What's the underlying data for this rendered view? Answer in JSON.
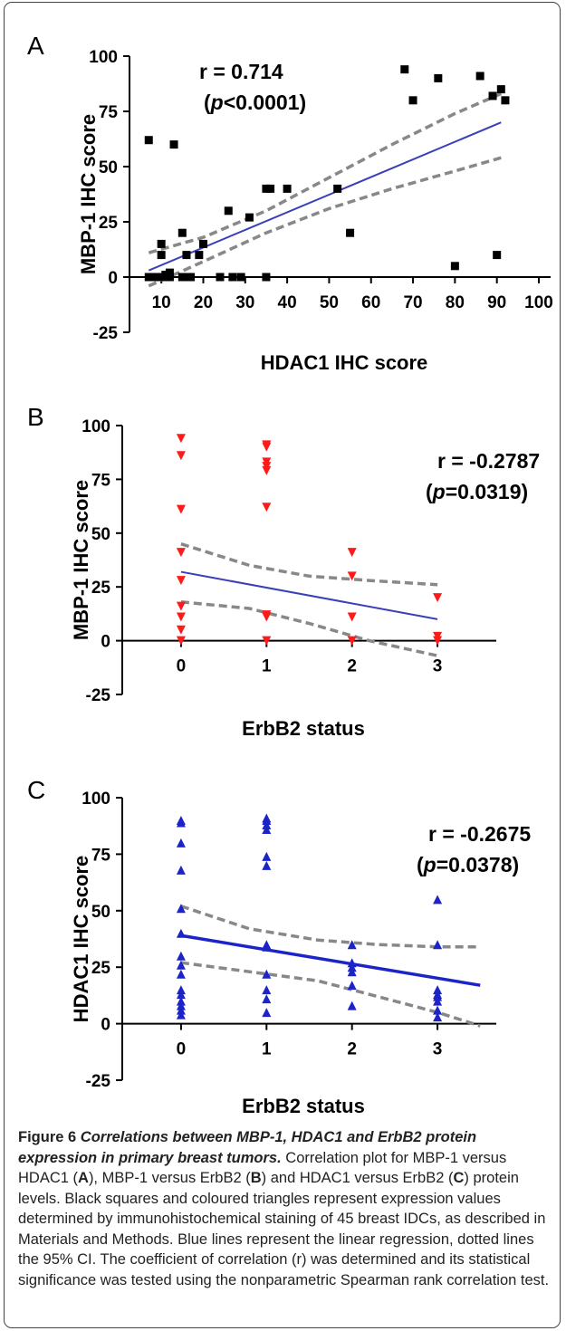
{
  "chart_data": [
    {
      "panel": "A",
      "type": "scatter",
      "marker": "square",
      "marker_color": "#000000",
      "xlabel": "HDAC1 IHC score",
      "ylabel": "MBP-1 IHC score",
      "xticks": [
        "10",
        "20",
        "30",
        "40",
        "50",
        "60",
        "70",
        "80",
        "90",
        "100"
      ],
      "yticks": [
        "100",
        "75",
        "50",
        "25",
        "0",
        "-25"
      ],
      "xlim": [
        5,
        100
      ],
      "ylim": [
        -25,
        100
      ],
      "annotation_r": "r = 0.714",
      "annotation_p_sym": "p",
      "annotation_p_val": "<0.0001",
      "regression": {
        "x0": 7,
        "y0": 3,
        "x1": 91,
        "y1": 70,
        "color": "#3b3fb8"
      },
      "ci_upper": [
        [
          7,
          11
        ],
        [
          20,
          18
        ],
        [
          35,
          30
        ],
        [
          50,
          45
        ],
        [
          65,
          60
        ],
        [
          80,
          74
        ],
        [
          91,
          83
        ]
      ],
      "ci_lower": [
        [
          7,
          -4
        ],
        [
          20,
          7
        ],
        [
          35,
          20
        ],
        [
          50,
          31
        ],
        [
          65,
          40
        ],
        [
          80,
          48
        ],
        [
          91,
          54
        ]
      ],
      "points": [
        [
          7,
          62
        ],
        [
          13,
          60
        ],
        [
          7,
          0
        ],
        [
          8,
          0
        ],
        [
          9,
          0
        ],
        [
          10,
          0
        ],
        [
          11,
          0
        ],
        [
          12,
          0
        ],
        [
          11,
          1
        ],
        [
          12,
          2
        ],
        [
          10,
          10
        ],
        [
          10,
          15
        ],
        [
          15,
          0
        ],
        [
          16,
          0
        ],
        [
          17,
          0
        ],
        [
          16,
          10
        ],
        [
          15,
          20
        ],
        [
          19,
          10
        ],
        [
          20,
          15
        ],
        [
          24,
          0
        ],
        [
          27,
          0
        ],
        [
          26,
          30
        ],
        [
          31,
          27
        ],
        [
          29,
          0
        ],
        [
          35,
          0
        ],
        [
          35,
          40
        ],
        [
          36,
          40
        ],
        [
          40,
          40
        ],
        [
          52,
          40
        ],
        [
          55,
          20
        ],
        [
          68,
          94
        ],
        [
          70,
          80
        ],
        [
          76,
          90
        ],
        [
          80,
          5
        ],
        [
          86,
          91
        ],
        [
          89,
          82
        ],
        [
          91,
          85
        ],
        [
          92,
          80
        ],
        [
          90,
          10
        ]
      ]
    },
    {
      "panel": "B",
      "type": "scatter",
      "marker": "triangle-down",
      "marker_color": "#ff1a1a",
      "xlabel": "ErbB2 status",
      "ylabel": "MBP-1 IHC score",
      "xticks": [
        "0",
        "1",
        "2",
        "3"
      ],
      "yticks": [
        "100",
        "75",
        "50",
        "25",
        "0",
        "-25"
      ],
      "xlim": [
        -0.55,
        3.55
      ],
      "ylim": [
        -25,
        100
      ],
      "annotation_r": "r = -0.2787",
      "annotation_p_sym": "p",
      "annotation_p_val": "=0.0319",
      "regression": {
        "x0": 0,
        "y0": 32,
        "x1": 3,
        "y1": 10,
        "color": "#3b3fb8"
      },
      "ci_upper": [
        [
          0,
          45
        ],
        [
          0.8,
          35
        ],
        [
          1.5,
          30
        ],
        [
          2.2,
          28
        ],
        [
          3,
          26
        ]
      ],
      "ci_lower": [
        [
          0,
          18
        ],
        [
          0.8,
          15
        ],
        [
          1.5,
          8
        ],
        [
          2.2,
          0
        ],
        [
          3,
          -7
        ]
      ],
      "points": [
        [
          0,
          94
        ],
        [
          0,
          86
        ],
        [
          0,
          61
        ],
        [
          0,
          41
        ],
        [
          0,
          28
        ],
        [
          0,
          16
        ],
        [
          0,
          11
        ],
        [
          0,
          5
        ],
        [
          0,
          0
        ],
        [
          1,
          91
        ],
        [
          1,
          90
        ],
        [
          1,
          83
        ],
        [
          1,
          81
        ],
        [
          1,
          79
        ],
        [
          1,
          62
        ],
        [
          1,
          12
        ],
        [
          1,
          11
        ],
        [
          1,
          0
        ],
        [
          2,
          41
        ],
        [
          2,
          30
        ],
        [
          2,
          11
        ],
        [
          2,
          0
        ],
        [
          3,
          20
        ],
        [
          3,
          2
        ],
        [
          3,
          0
        ]
      ]
    },
    {
      "panel": "C",
      "type": "scatter",
      "marker": "triangle-up",
      "marker_color": "#1c24c8",
      "xlabel": "ErbB2 status",
      "ylabel": "HDAC1 IHC score",
      "xticks": [
        "0",
        "1",
        "2",
        "3"
      ],
      "yticks": [
        "100",
        "75",
        "50",
        "25",
        "0",
        "-25"
      ],
      "xlim": [
        -0.55,
        3.55
      ],
      "ylim": [
        -25,
        100
      ],
      "annotation_r": "r = -0.2675",
      "annotation_p_sym": "p",
      "annotation_p_val": "=0.0378",
      "regression": {
        "x0": 0,
        "y0": 39,
        "x1": 3.5,
        "y1": 17,
        "color": "#1c24c8"
      },
      "ci_upper": [
        [
          0,
          52
        ],
        [
          0.8,
          42
        ],
        [
          1.6,
          37
        ],
        [
          2.3,
          35
        ],
        [
          3,
          34
        ],
        [
          3.5,
          34
        ]
      ],
      "ci_lower": [
        [
          0,
          27
        ],
        [
          0.8,
          23
        ],
        [
          1.6,
          19
        ],
        [
          2.3,
          12
        ],
        [
          3,
          5
        ],
        [
          3.5,
          -1
        ]
      ],
      "points": [
        [
          0,
          90
        ],
        [
          0,
          89
        ],
        [
          0,
          80
        ],
        [
          0,
          68
        ],
        [
          0,
          51
        ],
        [
          0,
          40
        ],
        [
          0,
          30
        ],
        [
          0,
          26
        ],
        [
          0,
          22
        ],
        [
          0,
          15
        ],
        [
          0,
          13
        ],
        [
          0,
          10
        ],
        [
          0,
          8
        ],
        [
          0,
          6
        ],
        [
          0,
          4
        ],
        [
          1,
          91
        ],
        [
          1,
          90
        ],
        [
          1,
          88
        ],
        [
          1,
          86
        ],
        [
          1,
          74
        ],
        [
          1,
          70
        ],
        [
          1,
          35
        ],
        [
          1,
          34
        ],
        [
          1,
          22
        ],
        [
          1,
          15
        ],
        [
          1,
          11
        ],
        [
          1,
          5
        ],
        [
          2,
          35
        ],
        [
          2,
          27
        ],
        [
          2,
          25
        ],
        [
          2,
          23
        ],
        [
          2,
          17
        ],
        [
          2,
          8
        ],
        [
          3,
          55
        ],
        [
          3,
          35
        ],
        [
          3,
          15
        ],
        [
          3,
          13
        ],
        [
          3,
          12
        ],
        [
          3,
          10
        ],
        [
          3,
          6
        ],
        [
          3,
          3
        ]
      ]
    }
  ],
  "caption": {
    "fig_label": "Figure 6",
    "fig_title": "Correlations between MBP-1, HDAC1 and ErbB2 protein expression in primary breast tumors.",
    "text_1": " Correlation plot for MBP-1 versus HDAC1 (",
    "bold_a": "A",
    "text_2": "), MBP-1 versus ErbB2 (",
    "bold_b": "B",
    "text_3": ") and HDAC1 versus ErbB2 (",
    "bold_c": "C",
    "text_4": ") protein levels. Black squares and coloured triangles represent expression values determined by immunohistochemical staining of 45 breast IDCs, as described in Materials and Methods. Blue lines represent the linear regression, dotted lines the 95% CI. The coefficient of correlation (r) was determined and its statistical significance was tested using the nonparametric Spearman rank correlation test."
  },
  "colors": {
    "ci_line": "#888888",
    "axis": "#000000",
    "frame": "#444444"
  }
}
